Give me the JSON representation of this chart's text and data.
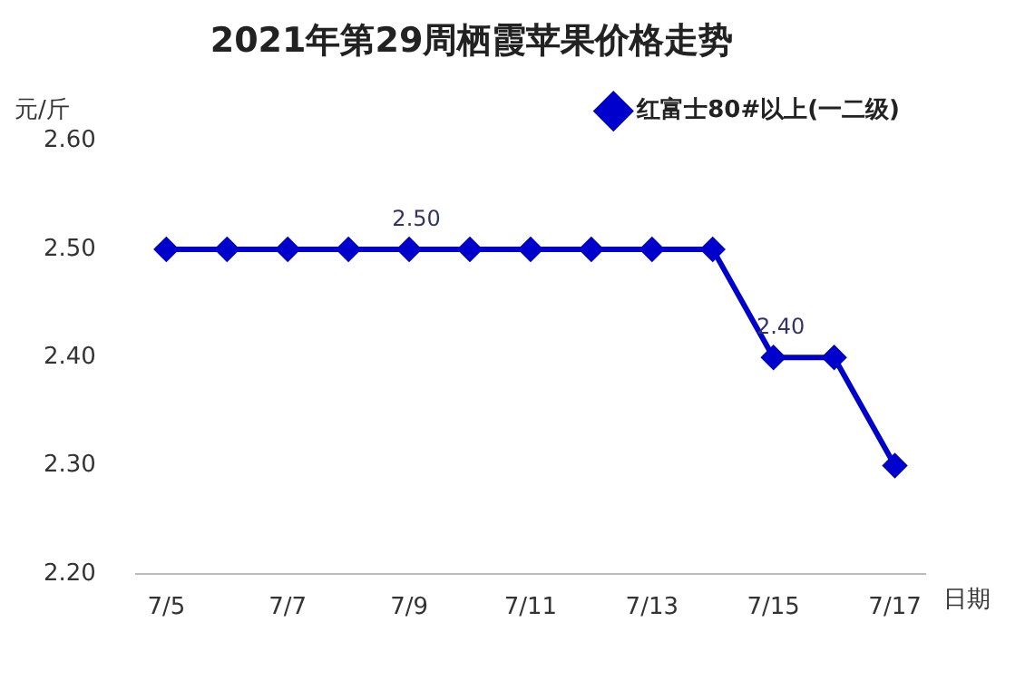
{
  "chart_data": {
    "type": "line",
    "title": "2021年第29周栖霞苹果价格走势",
    "ylabel": "元/斤",
    "xlabel": "日期",
    "categories": [
      "7/5",
      null,
      "7/7",
      null,
      "7/9",
      null,
      "7/11",
      null,
      "7/13",
      null,
      "7/15",
      null,
      "7/17"
    ],
    "series": [
      {
        "name": "红富士80#以上(一二级)",
        "color": "#0000cc",
        "values": [
          2.5,
          2.5,
          2.5,
          2.5,
          2.5,
          2.5,
          2.5,
          2.5,
          2.5,
          2.5,
          2.4,
          2.4,
          2.3
        ],
        "value_labels": [
          null,
          null,
          null,
          null,
          "2.50",
          null,
          null,
          null,
          null,
          null,
          "2.40",
          null,
          null
        ]
      }
    ],
    "ylim": [
      2.2,
      2.6
    ],
    "yticks": [
      {
        "value": 2.2,
        "label": "2.20"
      },
      {
        "value": 2.3,
        "label": "2.30"
      },
      {
        "value": 2.4,
        "label": "2.40"
      },
      {
        "value": 2.5,
        "label": "2.50"
      },
      {
        "value": 2.6,
        "label": "2.60"
      }
    ],
    "legend": "top right",
    "marker": "diamond",
    "line_style": "solid",
    "grid": false
  }
}
